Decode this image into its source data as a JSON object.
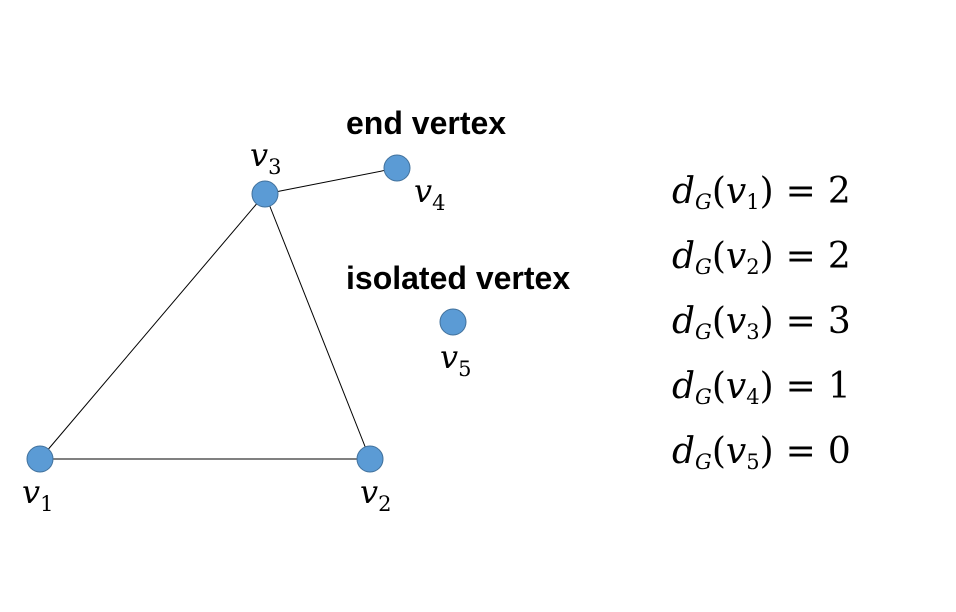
{
  "colors": {
    "vertex_fill": "#5b9bd5",
    "vertex_stroke": "#41719c",
    "edge": "#000000",
    "text": "#000000"
  },
  "vertices": [
    {
      "id": "v1",
      "label": "v",
      "sub": "1"
    },
    {
      "id": "v2",
      "label": "v",
      "sub": "2"
    },
    {
      "id": "v3",
      "label": "v",
      "sub": "3"
    },
    {
      "id": "v4",
      "label": "v",
      "sub": "4"
    },
    {
      "id": "v5",
      "label": "v",
      "sub": "5"
    }
  ],
  "edges": [
    {
      "from": "v1",
      "to": "v2"
    },
    {
      "from": "v1",
      "to": "v3"
    },
    {
      "from": "v2",
      "to": "v3"
    },
    {
      "from": "v3",
      "to": "v4"
    }
  ],
  "annotations": {
    "end_vertex": "end vertex",
    "isolated_vertex": "isolated vertex"
  },
  "degrees": [
    {
      "fn": "d",
      "fn_sub": "G",
      "var": "v",
      "var_sub": "1",
      "op": "=",
      "value": "2"
    },
    {
      "fn": "d",
      "fn_sub": "G",
      "var": "v",
      "var_sub": "2",
      "op": "=",
      "value": "2"
    },
    {
      "fn": "d",
      "fn_sub": "G",
      "var": "v",
      "var_sub": "3",
      "op": "=",
      "value": "3"
    },
    {
      "fn": "d",
      "fn_sub": "G",
      "var": "v",
      "var_sub": "4",
      "op": "=",
      "value": "1"
    },
    {
      "fn": "d",
      "fn_sub": "G",
      "var": "v",
      "var_sub": "5",
      "op": "=",
      "value": "0"
    }
  ]
}
